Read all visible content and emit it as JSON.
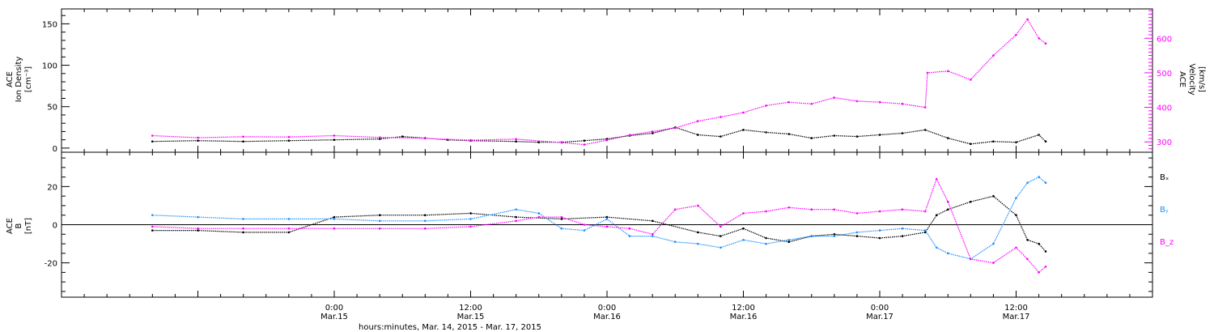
{
  "chart_data": {
    "type": "scatter",
    "xlabel": "hours:minutes, Mar. 14, 2015 - Mar. 17, 2015",
    "x_start_label": "Mar. 14, 2015 0:00",
    "x_end_label": "Mar. 17, 2015 24:00",
    "x_ticks": [
      {
        "time": "0:00",
        "date": "Mar.15",
        "hour": 24
      },
      {
        "time": "12:00",
        "date": "Mar.15",
        "hour": 36
      },
      {
        "time": "0:00",
        "date": "Mar.16",
        "hour": 48
      },
      {
        "time": "12:00",
        "date": "Mar.16",
        "hour": 60
      },
      {
        "time": "0:00",
        "date": "Mar.17",
        "hour": 72
      },
      {
        "time": "12:00",
        "date": "Mar.17",
        "hour": 84
      }
    ],
    "panels": [
      {
        "id": "top",
        "left_label_lines": [
          "ACE",
          "Ion Density",
          "[cm⁻³]"
        ],
        "right_label_lines": [
          "ACE",
          "Velocity",
          "[km/s]"
        ],
        "left_ylim": [
          -5,
          168
        ],
        "left_ticks": [
          0,
          50,
          100,
          150
        ],
        "right_ylim": [
          270,
          685
        ],
        "right_ticks": [
          300,
          400,
          500,
          600
        ],
        "series": [
          {
            "axis": "left",
            "color": "#000000",
            "points": [
              [
                8,
                8
              ],
              [
                12,
                9
              ],
              [
                16,
                8
              ],
              [
                20,
                9
              ],
              [
                24,
                10
              ],
              [
                28,
                11
              ],
              [
                30,
                14
              ],
              [
                32,
                12
              ],
              [
                34,
                10
              ],
              [
                36,
                9
              ],
              [
                40,
                8
              ],
              [
                42,
                7
              ],
              [
                44,
                7
              ],
              [
                46,
                9
              ],
              [
                48,
                11
              ],
              [
                50,
                15
              ],
              [
                52,
                18
              ],
              [
                54,
                25
              ],
              [
                56,
                16
              ],
              [
                58,
                14
              ],
              [
                60,
                22
              ],
              [
                62,
                19
              ],
              [
                64,
                17
              ],
              [
                66,
                12
              ],
              [
                68,
                15
              ],
              [
                70,
                14
              ],
              [
                72,
                16
              ],
              [
                74,
                18
              ],
              [
                76,
                22
              ],
              [
                78,
                12
              ],
              [
                80,
                5
              ],
              [
                82,
                8
              ],
              [
                84,
                7
              ],
              [
                86,
                16
              ],
              [
                86.6,
                8
              ]
            ]
          },
          {
            "axis": "right",
            "color": "#ff00ff",
            "points": [
              [
                8,
                318
              ],
              [
                12,
                312
              ],
              [
                16,
                315
              ],
              [
                20,
                314
              ],
              [
                24,
                318
              ],
              [
                28,
                313
              ],
              [
                32,
                310
              ],
              [
                36,
                305
              ],
              [
                40,
                308
              ],
              [
                44,
                298
              ],
              [
                46,
                292
              ],
              [
                48,
                305
              ],
              [
                50,
                320
              ],
              [
                52,
                330
              ],
              [
                54,
                340
              ],
              [
                56,
                360
              ],
              [
                58,
                372
              ],
              [
                60,
                385
              ],
              [
                62,
                405
              ],
              [
                64,
                415
              ],
              [
                66,
                410
              ],
              [
                68,
                428
              ],
              [
                70,
                418
              ],
              [
                72,
                415
              ],
              [
                74,
                410
              ],
              [
                76,
                400
              ],
              [
                76.2,
                500
              ],
              [
                78,
                505
              ],
              [
                80,
                480
              ],
              [
                82,
                550
              ],
              [
                84,
                610
              ],
              [
                85,
                655
              ],
              [
                86,
                600
              ],
              [
                86.6,
                585
              ]
            ]
          }
        ]
      },
      {
        "id": "bottom",
        "left_label_lines": [
          "ACE",
          "B",
          "[nT]"
        ],
        "ylim": [
          -38,
          38
        ],
        "ticks": [
          -20,
          0,
          20
        ],
        "zero_line": true,
        "series": [
          {
            "name": "Bₓ",
            "color": "#000000",
            "points": [
              [
                8,
                -3
              ],
              [
                12,
                -3
              ],
              [
                16,
                -4
              ],
              [
                20,
                -4
              ],
              [
                24,
                4
              ],
              [
                28,
                5
              ],
              [
                32,
                5
              ],
              [
                36,
                6
              ],
              [
                40,
                4
              ],
              [
                44,
                3
              ],
              [
                48,
                4
              ],
              [
                52,
                2
              ],
              [
                56,
                -4
              ],
              [
                58,
                -6
              ],
              [
                60,
                -2
              ],
              [
                62,
                -7
              ],
              [
                64,
                -9
              ],
              [
                66,
                -6
              ],
              [
                68,
                -5
              ],
              [
                70,
                -6
              ],
              [
                72,
                -7
              ],
              [
                74,
                -6
              ],
              [
                76,
                -4
              ],
              [
                77,
                5
              ],
              [
                78,
                8
              ],
              [
                80,
                12
              ],
              [
                82,
                15
              ],
              [
                84,
                5
              ],
              [
                85,
                -8
              ],
              [
                86,
                -10
              ],
              [
                86.6,
                -14
              ]
            ]
          },
          {
            "name": "Bᵧ",
            "color": "#1e90ff",
            "points": [
              [
                8,
                5
              ],
              [
                12,
                4
              ],
              [
                16,
                3
              ],
              [
                20,
                3
              ],
              [
                24,
                3
              ],
              [
                28,
                2
              ],
              [
                32,
                2
              ],
              [
                36,
                3
              ],
              [
                40,
                8
              ],
              [
                42,
                6
              ],
              [
                44,
                -2
              ],
              [
                46,
                -3
              ],
              [
                48,
                3
              ],
              [
                50,
                -6
              ],
              [
                52,
                -6
              ],
              [
                54,
                -9
              ],
              [
                56,
                -10
              ],
              [
                58,
                -12
              ],
              [
                60,
                -8
              ],
              [
                62,
                -10
              ],
              [
                64,
                -8
              ],
              [
                66,
                -6
              ],
              [
                68,
                -6
              ],
              [
                70,
                -4
              ],
              [
                72,
                -3
              ],
              [
                74,
                -2
              ],
              [
                76,
                -3
              ],
              [
                77,
                -12
              ],
              [
                78,
                -15
              ],
              [
                80,
                -18
              ],
              [
                82,
                -10
              ],
              [
                84,
                14
              ],
              [
                85,
                22
              ],
              [
                86,
                25
              ],
              [
                86.6,
                22
              ]
            ]
          },
          {
            "name": "B_z",
            "color": "#ff00ff",
            "points": [
              [
                8,
                -1
              ],
              [
                12,
                -2
              ],
              [
                16,
                -2
              ],
              [
                20,
                -2
              ],
              [
                24,
                -2
              ],
              [
                28,
                -2
              ],
              [
                32,
                -2
              ],
              [
                36,
                -1
              ],
              [
                40,
                2
              ],
              [
                42,
                4
              ],
              [
                44,
                4
              ],
              [
                46,
                0
              ],
              [
                48,
                -1
              ],
              [
                50,
                -2
              ],
              [
                52,
                -5
              ],
              [
                54,
                8
              ],
              [
                56,
                10
              ],
              [
                58,
                -1
              ],
              [
                60,
                6
              ],
              [
                62,
                7
              ],
              [
                64,
                9
              ],
              [
                66,
                8
              ],
              [
                68,
                8
              ],
              [
                70,
                6
              ],
              [
                72,
                7
              ],
              [
                74,
                8
              ],
              [
                76,
                7
              ],
              [
                77,
                24
              ],
              [
                78,
                12
              ],
              [
                80,
                -18
              ],
              [
                82,
                -20
              ],
              [
                84,
                -12
              ],
              [
                85,
                -18
              ],
              [
                86,
                -25
              ],
              [
                86.6,
                -22
              ]
            ]
          }
        ]
      }
    ],
    "colors": {
      "black": "#000000",
      "blue": "#1e90ff",
      "magenta": "#ff00ff"
    }
  }
}
